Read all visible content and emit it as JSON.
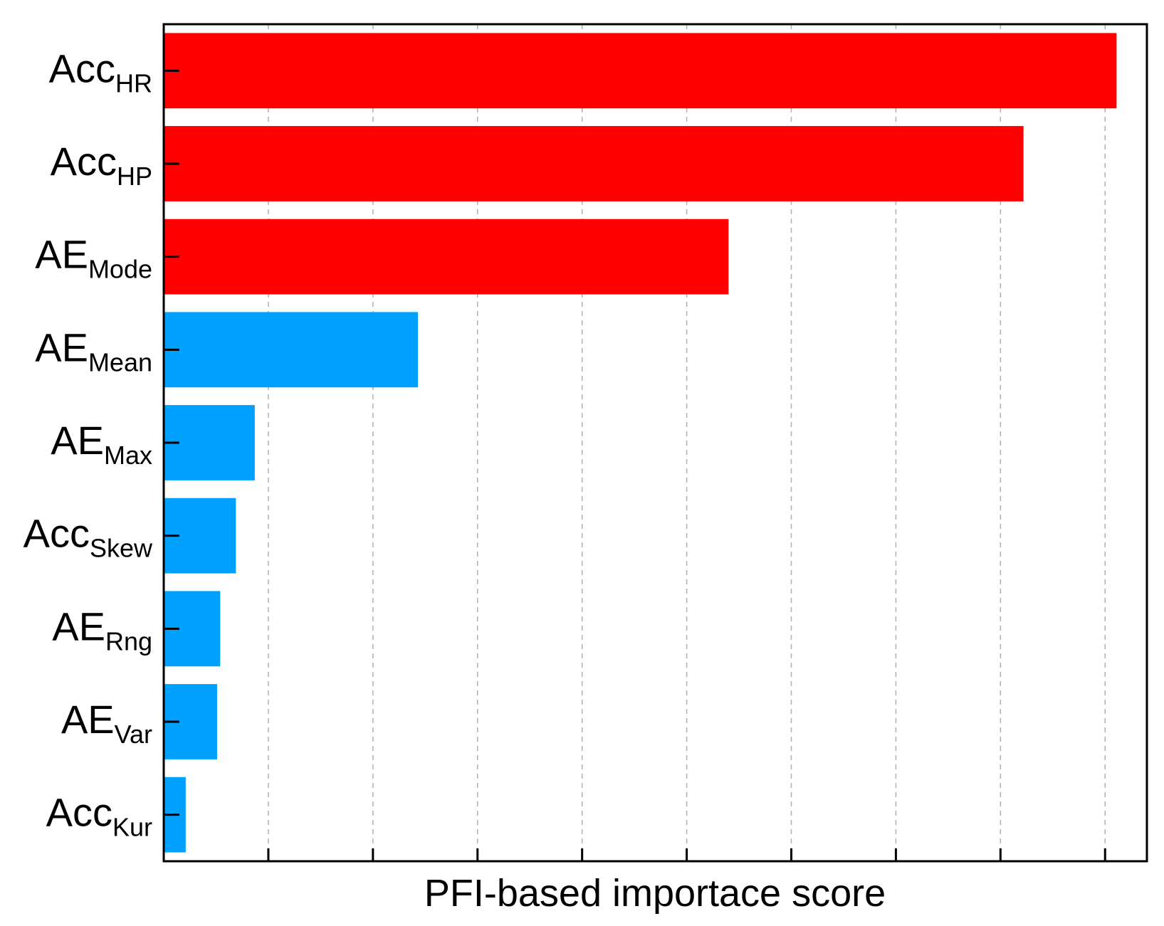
{
  "chart_data": {
    "type": "bar",
    "orientation": "horizontal",
    "xlabel": "PFI-based importace score",
    "ylabel": "",
    "title": "",
    "grid": "vertical dashed",
    "legend": "none",
    "xlim": [
      0,
      9.4
    ],
    "categories": [
      {
        "base": "Acc",
        "sub": "HR"
      },
      {
        "base": "Acc",
        "sub": "HP"
      },
      {
        "base": "AE",
        "sub": "Mode"
      },
      {
        "base": "AE",
        "sub": "Mean"
      },
      {
        "base": "AE",
        "sub": "Max"
      },
      {
        "base": "Acc",
        "sub": "Skew"
      },
      {
        "base": "AE",
        "sub": "Rng"
      },
      {
        "base": "AE",
        "sub": "Var"
      },
      {
        "base": "Acc",
        "sub": "Kur"
      }
    ],
    "values": [
      9.11,
      8.22,
      5.4,
      2.43,
      0.87,
      0.69,
      0.54,
      0.51,
      0.21
    ],
    "bar_colors": [
      "#ff0000",
      "#ff0000",
      "#ff0000",
      "#00a0ff",
      "#00a0ff",
      "#00a0ff",
      "#00a0ff",
      "#00a0ff",
      "#00a0ff"
    ],
    "x_tick_count": 9
  }
}
